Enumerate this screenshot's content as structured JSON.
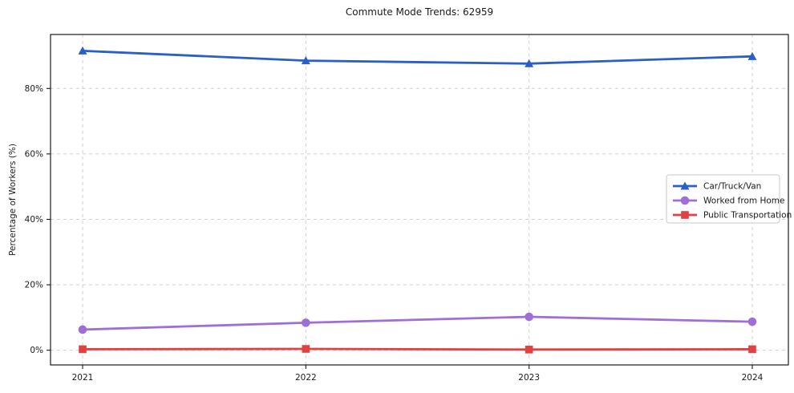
{
  "title": "Commute Mode Trends: 62959",
  "colors": {
    "car": "#2a5fc7",
    "worked_from_home": "#9f6fd6",
    "public_transportation": "#e04141",
    "grid": "#cfcfcf",
    "spine": "#1a1a1a",
    "text": "#1a1a1a",
    "legend_border": "#c9c9c9",
    "legend_bg": "#ffffff"
  },
  "chart_data": {
    "type": "line",
    "title": "Commute Mode Trends: 62959",
    "xlabel": "",
    "ylabel": "Percentage of Workers (%)",
    "x": [
      2021,
      2022,
      2023,
      2024
    ],
    "xtick_labels": [
      "2021",
      "2022",
      "2023",
      "2024"
    ],
    "series": [
      {
        "name": "Car/Truck/Van",
        "marker": "triangle",
        "color": "#2a5fc7",
        "values": [
          91.5,
          88.5,
          87.6,
          89.8
        ]
      },
      {
        "name": "Worked from Home",
        "marker": "circle",
        "color": "#9f6fd6",
        "values": [
          6.3,
          8.4,
          10.2,
          8.7
        ]
      },
      {
        "name": "Public Transportation",
        "marker": "square",
        "color": "#e04141",
        "values": [
          0.3,
          0.4,
          0.2,
          0.3
        ]
      }
    ],
    "yticks": [
      0,
      20,
      40,
      60,
      80
    ],
    "ytick_labels": [
      "0%",
      "20%",
      "40%",
      "60%",
      "80%"
    ],
    "ylim": [
      -4.5,
      96.5
    ],
    "grid": true,
    "grid_style": "dashed",
    "legend_position": "center-right"
  }
}
